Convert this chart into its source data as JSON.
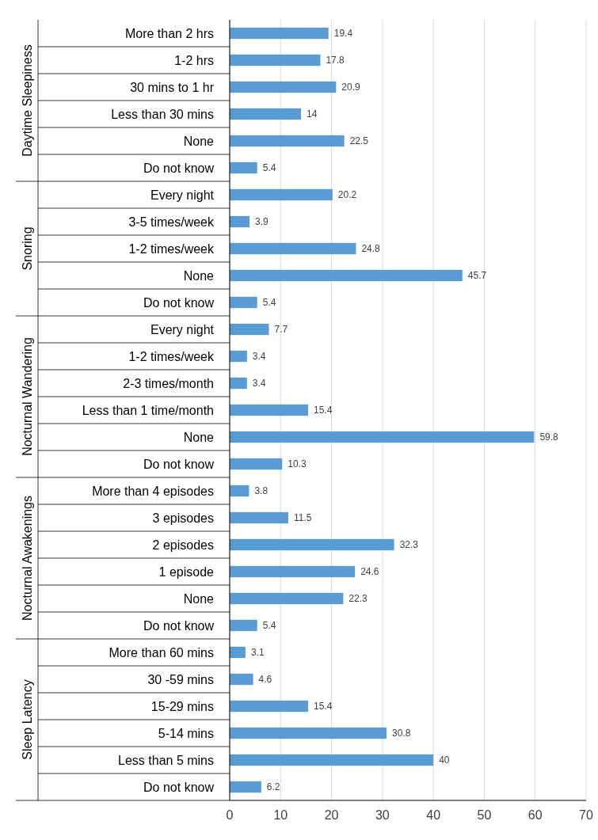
{
  "chart_data": [
    {
      "type": "bar",
      "orientation": "horizontal",
      "ylabel": "Daytime Sleepiness",
      "categories": [
        "More than 2 hrs",
        "1-2 hrs",
        "30 mins to 1 hr",
        "Less than 30 mins",
        "None",
        "Do not know"
      ],
      "values": [
        19.4,
        17.8,
        20.9,
        14,
        22.5,
        5.4
      ],
      "color": "#5b9bd5",
      "xlim": [
        0,
        70
      ],
      "xticks": [
        0,
        10,
        20,
        30,
        40,
        50,
        60,
        70
      ],
      "grid": "x",
      "data_labels": true,
      "tick_labels": "y"
    },
    {
      "type": "bar",
      "orientation": "horizontal",
      "ylabel": "Snoring",
      "categories": [
        "Every night",
        "3-5  times/week",
        "1-2 times/week",
        "None",
        "Do not know"
      ],
      "values": [
        20.2,
        3.9,
        24.8,
        45.7,
        5.4
      ],
      "color": "#5b9bd5",
      "xlim": [
        0,
        70
      ],
      "xticks": [
        0,
        10,
        20,
        30,
        40,
        50,
        60,
        70
      ],
      "grid": "x",
      "data_labels": true,
      "tick_labels": "y"
    },
    {
      "type": "bar",
      "orientation": "horizontal",
      "ylabel": "Nocturnal Wandering",
      "categories": [
        "Every night",
        "1-2 times/week",
        "2-3 times/month",
        "Less than 1 time/month",
        "None",
        "Do not know"
      ],
      "values": [
        7.7,
        3.4,
        3.4,
        15.4,
        59.8,
        10.3
      ],
      "color": "#5b9bd5",
      "xlim": [
        0,
        70
      ],
      "xticks": [
        0,
        10,
        20,
        30,
        40,
        50,
        60,
        70
      ],
      "grid": "x",
      "data_labels": true,
      "tick_labels": "y"
    },
    {
      "type": "bar",
      "orientation": "horizontal",
      "ylabel": "Nocturnal Awakenings",
      "categories": [
        "More than 4 episodes",
        "3 episodes",
        "2 episodes",
        "1 episode",
        "None",
        "Do not know"
      ],
      "values": [
        3.8,
        11.5,
        32.3,
        24.6,
        22.3,
        5.4
      ],
      "color": "#5b9bd5",
      "xlim": [
        0,
        70
      ],
      "xticks": [
        0,
        10,
        20,
        30,
        40,
        50,
        60,
        70
      ],
      "grid": "x",
      "data_labels": true,
      "tick_labels": "y"
    },
    {
      "type": "bar",
      "orientation": "horizontal",
      "ylabel": "Sleep Latency",
      "categories": [
        "More than 60 mins",
        "30 -59 mins",
        "15-29 mins",
        "5-14 mins",
        "Less than 5 mins",
        "Do not know"
      ],
      "values": [
        3.1,
        4.6,
        15.4,
        30.8,
        40,
        6.2
      ],
      "color": "#5b9bd5",
      "xlim": [
        0,
        70
      ],
      "xticks": [
        0,
        10,
        20,
        30,
        40,
        50,
        60,
        70
      ],
      "grid": "x",
      "data_labels": true
    }
  ]
}
